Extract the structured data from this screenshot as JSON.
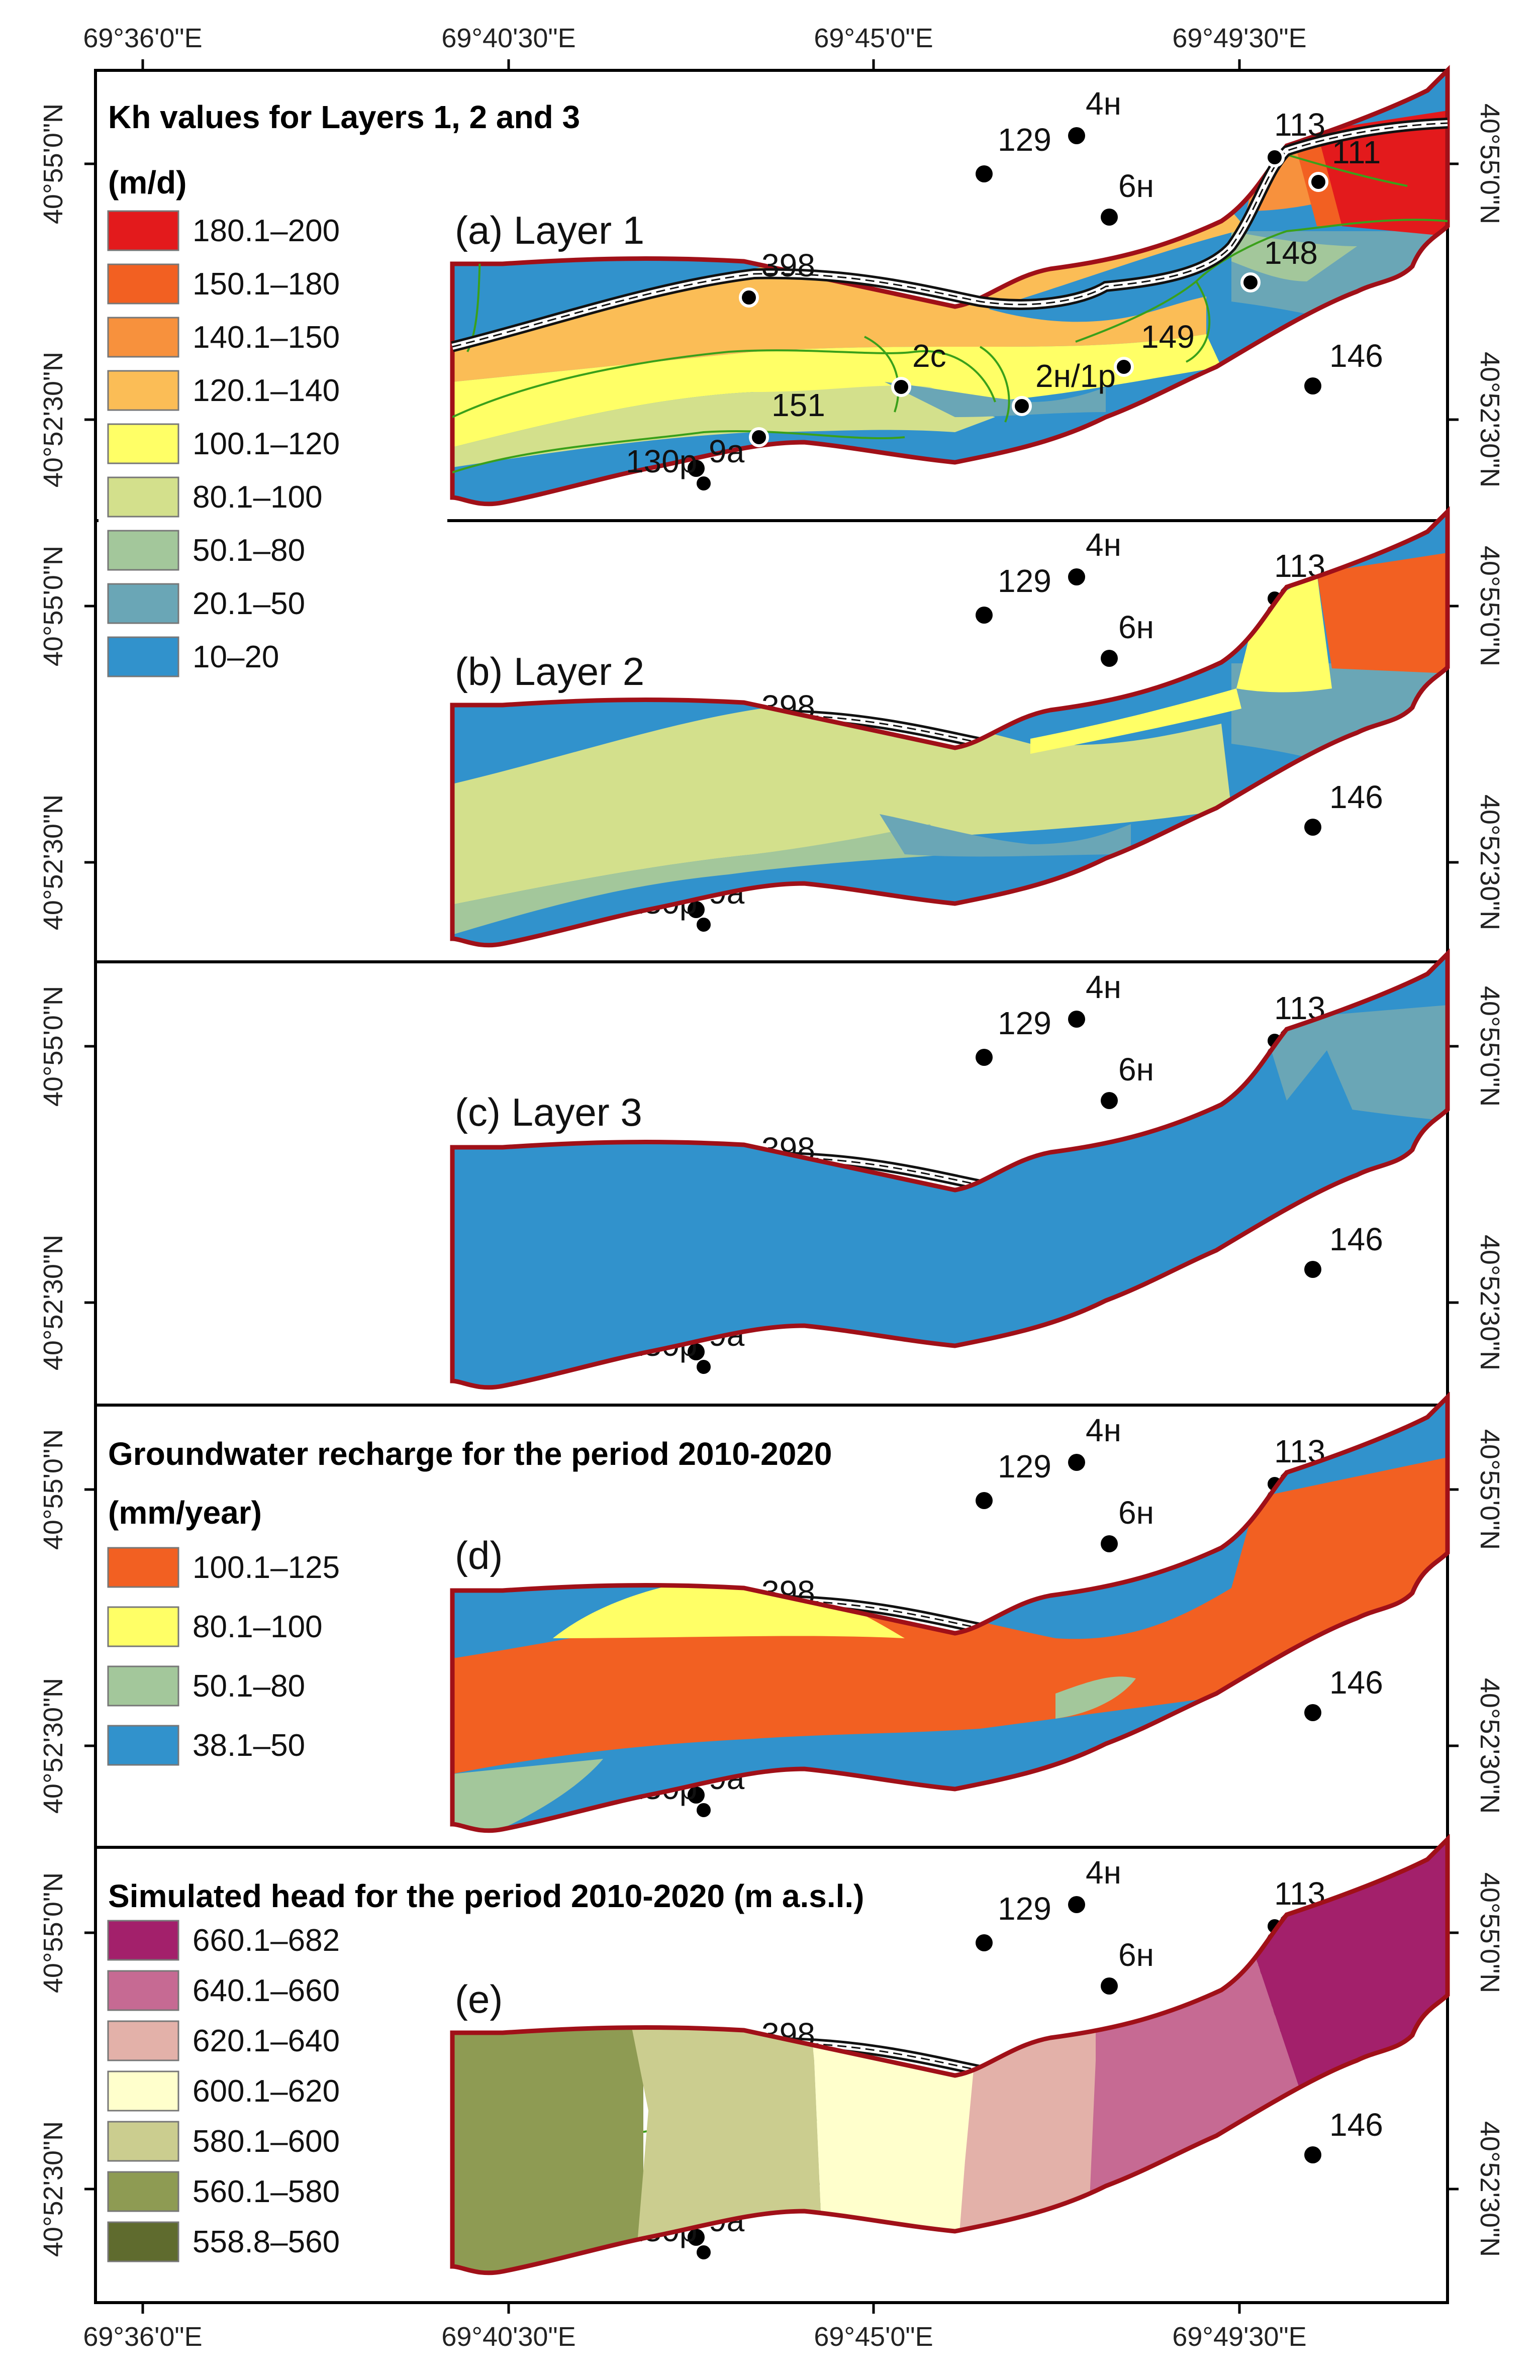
{
  "axes": {
    "top": [
      "69°36'0\"E",
      "69°40'30\"E",
      "69°45'0\"E",
      "69°49'30\"E"
    ],
    "bottom": [
      "69°36'0\"E",
      "69°40'30\"E",
      "69°45'0\"E",
      "69°49'30\"E"
    ],
    "lat": [
      "40°55'0\"N",
      "40°52'30\"N"
    ]
  },
  "colors": {
    "boundary": "#a01018",
    "river": "#3aa01a",
    "canal": "#111111"
  },
  "wells": [
    "4н",
    "129",
    "6н",
    "113",
    "111",
    "398",
    "148",
    "149",
    "2с",
    "2н/1р",
    "146",
    "151",
    "9а",
    "130р"
  ],
  "panels": [
    {
      "label": "(a) Layer 1"
    },
    {
      "label": "(b) Layer 2"
    },
    {
      "label": "(c) Layer 3"
    },
    {
      "label": "(d)"
    },
    {
      "label": "(e)"
    }
  ],
  "legends": {
    "kh": {
      "title": "Kh values for Layers 1, 2 and 3",
      "unit": "(m/d)",
      "items": [
        {
          "label": "180.1–200",
          "color": "#e31a1c"
        },
        {
          "label": "150.1–180",
          "color": "#f26022"
        },
        {
          "label": "140.1–150",
          "color": "#f7913d"
        },
        {
          "label": "120.1–140",
          "color": "#fbbd56"
        },
        {
          "label": "100.1–120",
          "color": "#ffff66"
        },
        {
          "label": "80.1–100",
          "color": "#d3e08c"
        },
        {
          "label": "50.1–80",
          "color": "#a3c79b"
        },
        {
          "label": "20.1–50",
          "color": "#6aa6b6"
        },
        {
          "label": "10–20",
          "color": "#3192cc"
        }
      ]
    },
    "recharge": {
      "title": "Groundwater recharge for the period 2010-2020",
      "unit": "(mm/year)",
      "items": [
        {
          "label": "100.1–125",
          "color": "#f26022"
        },
        {
          "label": "80.1–100",
          "color": "#ffff66"
        },
        {
          "label": "50.1–80",
          "color": "#a3c79b"
        },
        {
          "label": "38.1–50",
          "color": "#3192cc"
        }
      ]
    },
    "head": {
      "title": "Simulated head for the period 2010-2020 (m a.s.l.)",
      "items": [
        {
          "label": "660.1–682",
          "color": "#a3206b"
        },
        {
          "label": "640.1–660",
          "color": "#c66a93"
        },
        {
          "label": "620.1–640",
          "color": "#e3b1a9"
        },
        {
          "label": "600.1–620",
          "color": "#ffffcc"
        },
        {
          "label": "580.1–600",
          "color": "#cbcd8f"
        },
        {
          "label": "560.1–580",
          "color": "#8e9b53"
        },
        {
          "label": "558.8–560",
          "color": "#5f6b2e"
        }
      ]
    }
  }
}
